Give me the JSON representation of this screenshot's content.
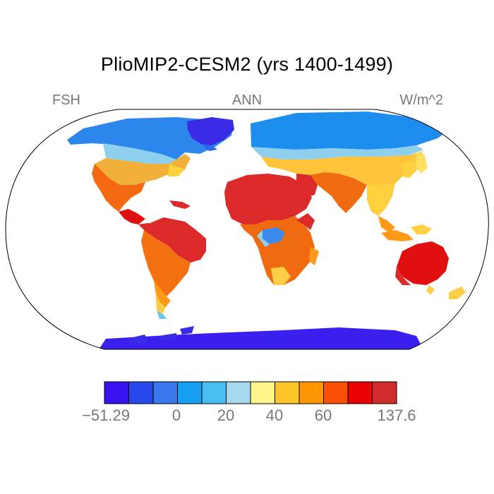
{
  "title": "PlioMIP2-CESM2 (yrs 1400-1499)",
  "labels": {
    "left": "FSH",
    "center": "ANN",
    "right": "W/m^2"
  },
  "colorbar": {
    "colors": [
      "#3a12ef",
      "#2748ea",
      "#3a78ee",
      "#17a0f3",
      "#48bdf0",
      "#a6d9ee",
      "#fff58a",
      "#ffc62b",
      "#ff9702",
      "#fb4f06",
      "#ea0003",
      "#d12b2b"
    ],
    "tick_labels": [
      "−51.29",
      "0",
      "20",
      "40",
      "60",
      "137.6"
    ]
  }
}
